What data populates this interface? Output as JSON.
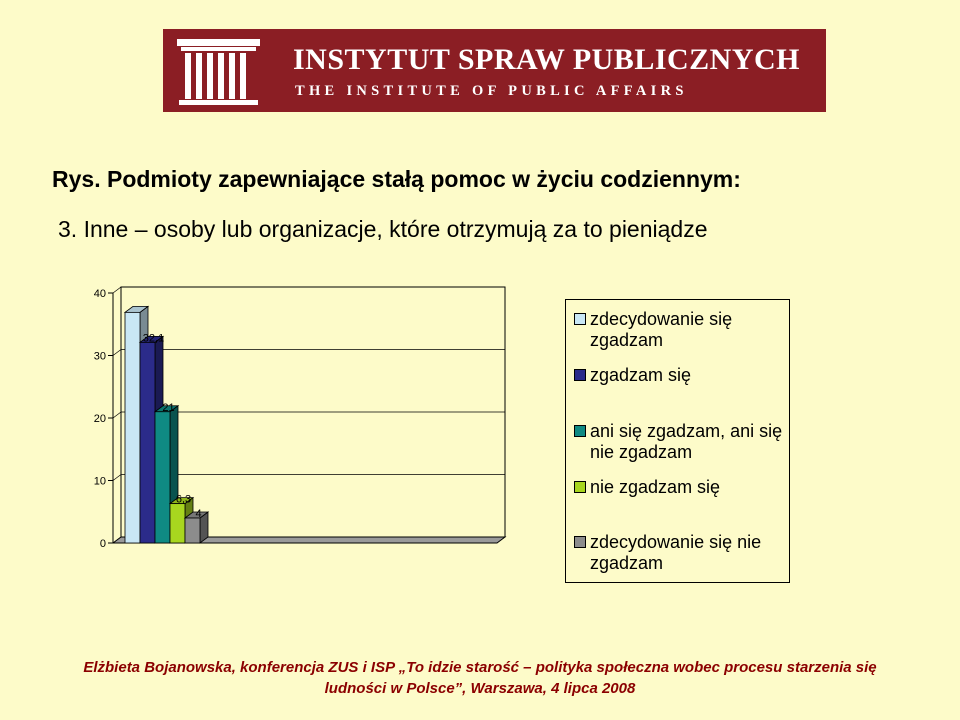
{
  "header": {
    "line1": "INSTYTUT SPRAW PUBLICZNYCH",
    "line2": "THE INSTITUTE OF PUBLIC AFFAIRS",
    "logo_icon": "columns-logo-icon"
  },
  "title": "Rys. Podmioty zapewniające stałą pomoc w życiu codziennym:",
  "subtitle": "3. Inne – osoby lub organizacje, które otrzymują za to pieniądze",
  "footer": {
    "line1": "Elżbieta Bojanowska, konferencja ZUS i ISP „To idzie starość – polityka społeczna wobec procesu starzenia się",
    "line2": "ludności w Polsce”, Warszawa, 4 lipca 2008"
  },
  "colors": {
    "background": "#fdfbc9",
    "banner": "#8b1e24",
    "footer_text": "#8b0000"
  },
  "chart_data": {
    "type": "bar",
    "three_d": true,
    "ylim": [
      0,
      40
    ],
    "yticks": [
      "0",
      "10",
      "20",
      "30",
      "40"
    ],
    "legend_position": "right",
    "series": [
      {
        "name": "zdecydowanie się zgadzam",
        "value": 36.9,
        "label": "",
        "color": "#c9e7f5"
      },
      {
        "name": "zgadzam się",
        "value": 32.1,
        "label": "32,1",
        "color": "#2b2b8a"
      },
      {
        "name": "ani się zgadzam, ani się nie zgadzam",
        "value": 21,
        "label": "21",
        "color": "#0f8a83"
      },
      {
        "name": "nie zgadzam się",
        "value": 6.3,
        "label": "6,3",
        "color": "#a8d61f"
      },
      {
        "name": "zdecydowanie się nie zgadzam",
        "value": 4,
        "label": "4",
        "color": "#8c8c8c"
      }
    ]
  }
}
